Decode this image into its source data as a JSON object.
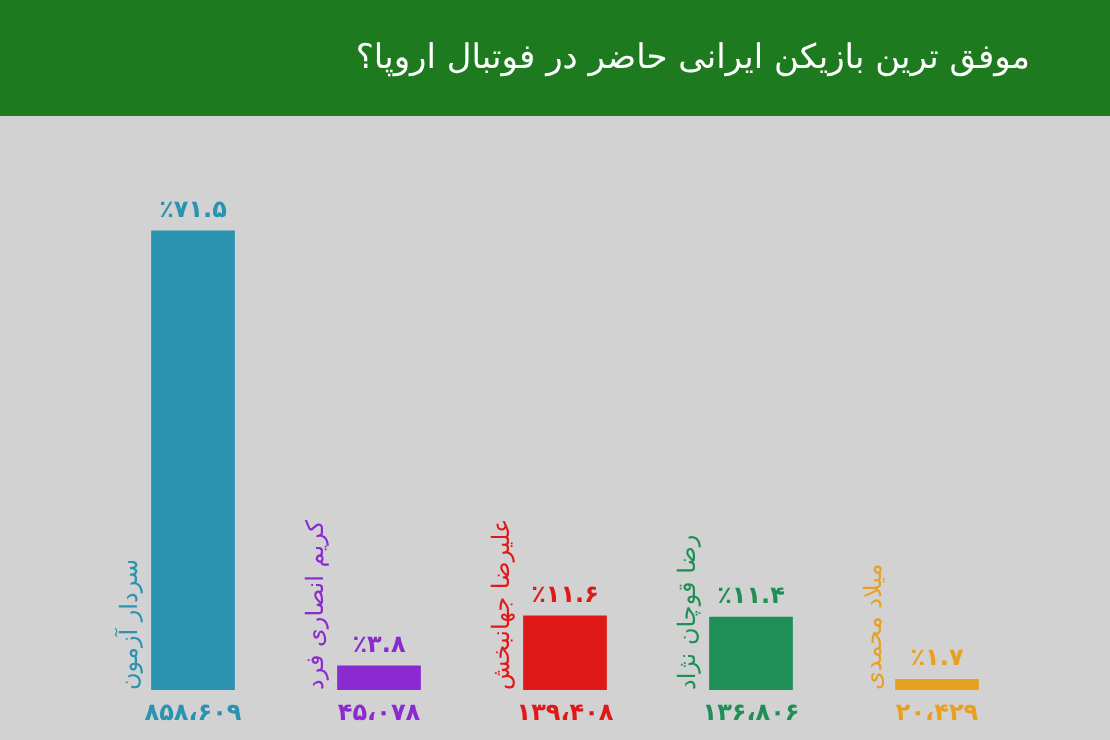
{
  "chart_data": {
    "type": "bar",
    "title": "موفق ترین بازیکن ایرانی حاضر در فوتبال اروپا؟",
    "categories": [
      "سردار آزمون",
      "کریم انصاری فرد",
      "علیرضا جهانبخش",
      "رضا قوچان نژاد",
      "میلاد محمدی"
    ],
    "values": [
      71.5,
      3.8,
      11.6,
      11.4,
      1.7
    ],
    "colors": [
      "#2a93b0",
      "#8a2ad0",
      "#e01818",
      "#1f8f55",
      "#e8a020"
    ],
    "value_labels": [
      "٪۷۱.۵",
      "٪۳.۸",
      "٪۱۱.۶",
      "٪۱۱.۴",
      "٪۱.۷"
    ],
    "annotations": [
      "۸۵۸،۶۰۹",
      "۴۵،۰۷۸",
      "۱۳۹،۴۰۸",
      "۱۳۶،۸۰۶",
      "۲۰،۴۲۹"
    ]
  }
}
